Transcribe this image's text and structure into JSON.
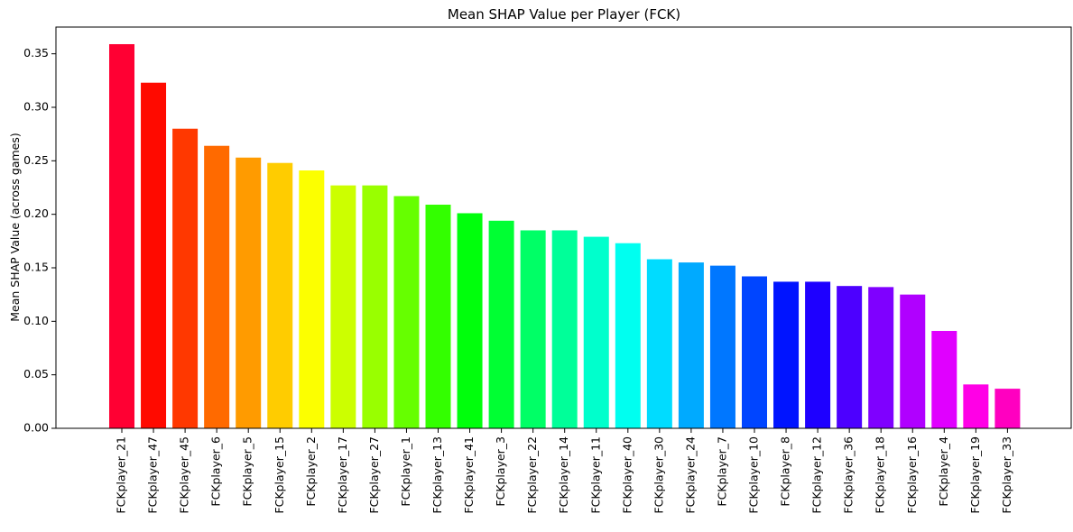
{
  "chart_data": {
    "type": "bar",
    "title": "Mean SHAP Value per Player (FCK)",
    "xlabel": "",
    "ylabel": "Mean SHAP Value (across games)",
    "ylim": [
      0,
      0.375
    ],
    "yticks": [
      0.0,
      0.05,
      0.1,
      0.15,
      0.2,
      0.25,
      0.3,
      0.35
    ],
    "ytick_labels": [
      "0.00",
      "0.05",
      "0.10",
      "0.15",
      "0.20",
      "0.25",
      "0.30",
      "0.35"
    ],
    "grid": false,
    "categories": [
      "FCKplayer_21",
      "FCKplayer_47",
      "FCKplayer_45",
      "FCKplayer_6",
      "FCKplayer_5",
      "FCKplayer_15",
      "FCKplayer_2",
      "FCKplayer_17",
      "FCKplayer_27",
      "FCKplayer_1",
      "FCKplayer_13",
      "FCKplayer_41",
      "FCKplayer_3",
      "FCKplayer_22",
      "FCKplayer_14",
      "FCKplayer_11",
      "FCKplayer_40",
      "FCKplayer_30",
      "FCKplayer_24",
      "FCKplayer_7",
      "FCKplayer_10",
      "FCKplayer_8",
      "FCKplayer_12",
      "FCKplayer_36",
      "FCKplayer_18",
      "FCKplayer_16",
      "FCKplayer_4",
      "FCKplayer_19",
      "FCKplayer_33"
    ],
    "values": [
      0.359,
      0.323,
      0.28,
      0.264,
      0.253,
      0.248,
      0.241,
      0.227,
      0.227,
      0.217,
      0.209,
      0.201,
      0.194,
      0.185,
      0.185,
      0.179,
      0.173,
      0.158,
      0.155,
      0.152,
      0.142,
      0.137,
      0.137,
      0.133,
      0.132,
      0.125,
      0.091,
      0.041,
      0.037
    ],
    "colors": [
      "#ff0033",
      "#ff0a00",
      "#ff3800",
      "#ff6a00",
      "#ff9b00",
      "#ffcc00",
      "#fcff00",
      "#ccff00",
      "#99ff00",
      "#66ff00",
      "#33ff00",
      "#00ff0c",
      "#00ff33",
      "#00ff66",
      "#00ff99",
      "#00ffcc",
      "#00fff0",
      "#00dcff",
      "#00aaff",
      "#0077ff",
      "#0045ff",
      "#0014ff",
      "#1e00ff",
      "#4c00ff",
      "#7f00ff",
      "#b000ff",
      "#e000ff",
      "#ff00e6",
      "#ff00c0"
    ]
  }
}
